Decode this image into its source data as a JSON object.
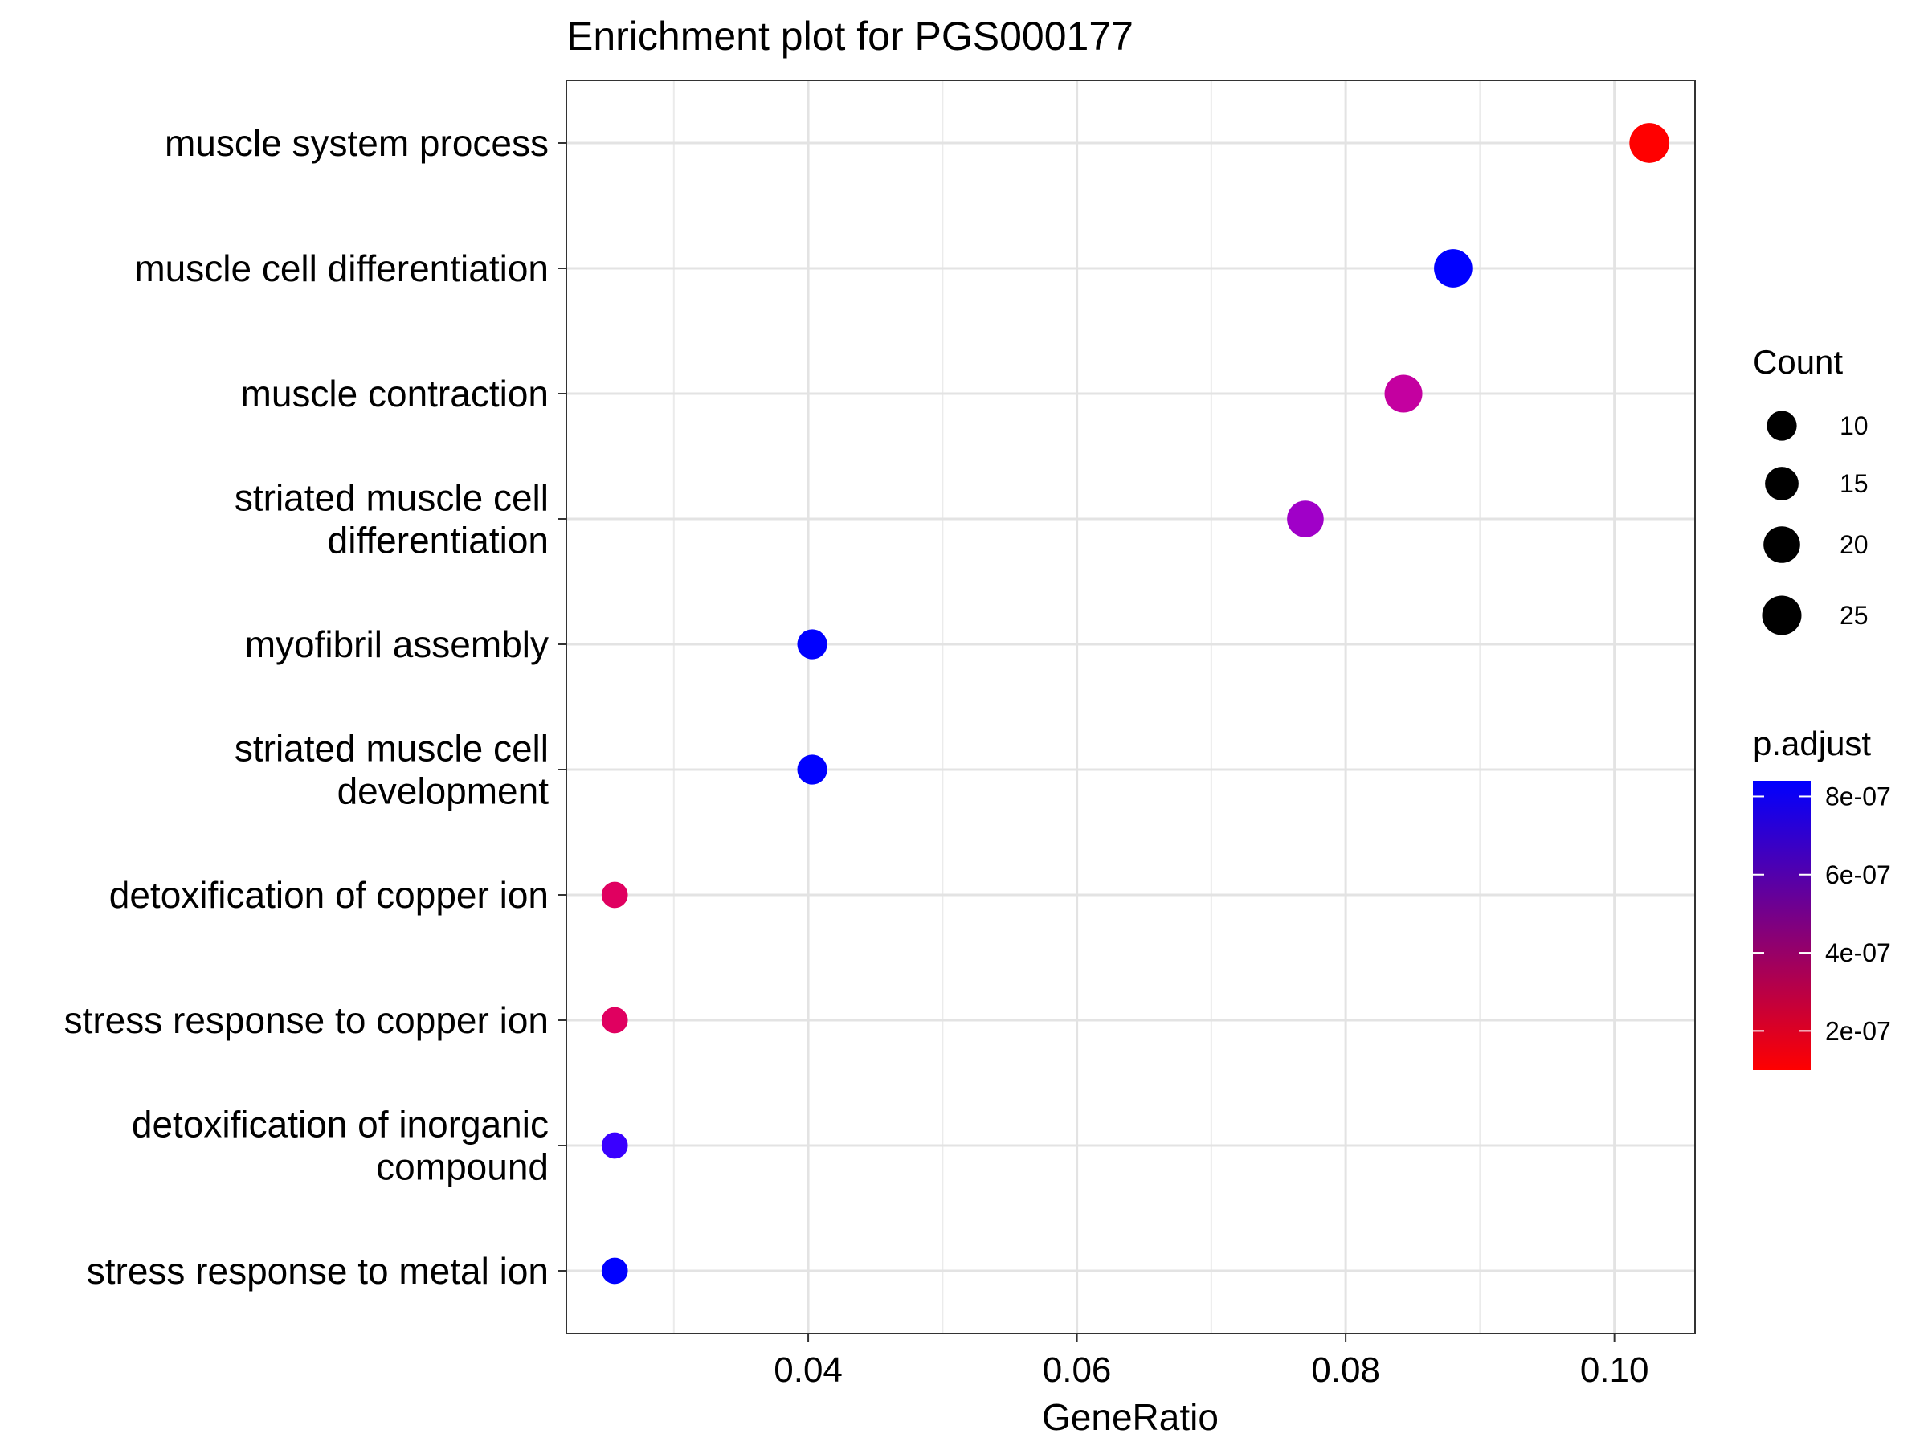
{
  "chart_data": {
    "type": "scatter",
    "title": "Enrichment plot for PGS000177",
    "xlabel": "GeneRatio",
    "ylabel": "",
    "xlim": [
      0.022,
      0.106
    ],
    "x_ticks": [
      "0.04",
      "0.06",
      "0.08",
      "0.10"
    ],
    "x_tick_values": [
      0.04,
      0.06,
      0.08,
      0.1
    ],
    "grid": true,
    "points": [
      {
        "term": "muscle system process",
        "label_lines": [
          "muscle system process"
        ],
        "gene_ratio": 0.1026,
        "count": 26,
        "p_adjust": 1e-07,
        "color": "#ff0000"
      },
      {
        "term": "muscle cell differentiation",
        "label_lines": [
          "muscle cell differentiation"
        ],
        "gene_ratio": 0.088,
        "count": 23,
        "p_adjust": 8.4e-07,
        "color": "#0000ff"
      },
      {
        "term": "muscle contraction",
        "label_lines": [
          "muscle contraction"
        ],
        "gene_ratio": 0.0843,
        "count": 22,
        "p_adjust": 5.5e-07,
        "color": "#c400a0"
      },
      {
        "term": "striated muscle cell differentiation",
        "label_lines": [
          "striated muscle cell",
          "differentiation"
        ],
        "gene_ratio": 0.077,
        "count": 20,
        "p_adjust": 6.5e-07,
        "color": "#a000c8"
      },
      {
        "term": "myofibril assembly",
        "label_lines": [
          "myofibril assembly"
        ],
        "gene_ratio": 0.0403,
        "count": 10,
        "p_adjust": 8.4e-07,
        "color": "#0000ff"
      },
      {
        "term": "striated muscle cell development",
        "label_lines": [
          "striated muscle cell",
          "development"
        ],
        "gene_ratio": 0.0403,
        "count": 10,
        "p_adjust": 8.4e-07,
        "color": "#0000ff"
      },
      {
        "term": "detoxification of copper ion",
        "label_lines": [
          "detoxification of copper ion"
        ],
        "gene_ratio": 0.0256,
        "count": 6,
        "p_adjust": 3.3e-07,
        "color": "#e00060"
      },
      {
        "term": "stress response to copper ion",
        "label_lines": [
          "stress response to copper ion"
        ],
        "gene_ratio": 0.0256,
        "count": 6,
        "p_adjust": 3.3e-07,
        "color": "#e00060"
      },
      {
        "term": "detoxification of inorganic compound",
        "label_lines": [
          "detoxification of inorganic",
          "compound"
        ],
        "gene_ratio": 0.0256,
        "count": 6,
        "p_adjust": 7.8e-07,
        "color": "#3a00ff"
      },
      {
        "term": "stress response to metal ion",
        "label_lines": [
          "stress response to metal ion"
        ],
        "gene_ratio": 0.0256,
        "count": 6,
        "p_adjust": 8.4e-07,
        "color": "#0000ff"
      }
    ],
    "legend": {
      "placement": "right",
      "size": {
        "title": "Count",
        "entries": [
          {
            "label": "10",
            "value": 10
          },
          {
            "label": "15",
            "value": 15
          },
          {
            "label": "20",
            "value": 20
          },
          {
            "label": "25",
            "value": 25
          }
        ]
      },
      "color": {
        "title": "p.adjust",
        "low_color": "#ff0000",
        "high_color": "#0000ff",
        "range": [
          1e-07,
          8.4e-07
        ],
        "entries": [
          {
            "label": "8e-07",
            "value": 8e-07
          },
          {
            "label": "6e-07",
            "value": 6e-07
          },
          {
            "label": "4e-07",
            "value": 4e-07
          },
          {
            "label": "2e-07",
            "value": 2e-07
          }
        ]
      }
    }
  }
}
